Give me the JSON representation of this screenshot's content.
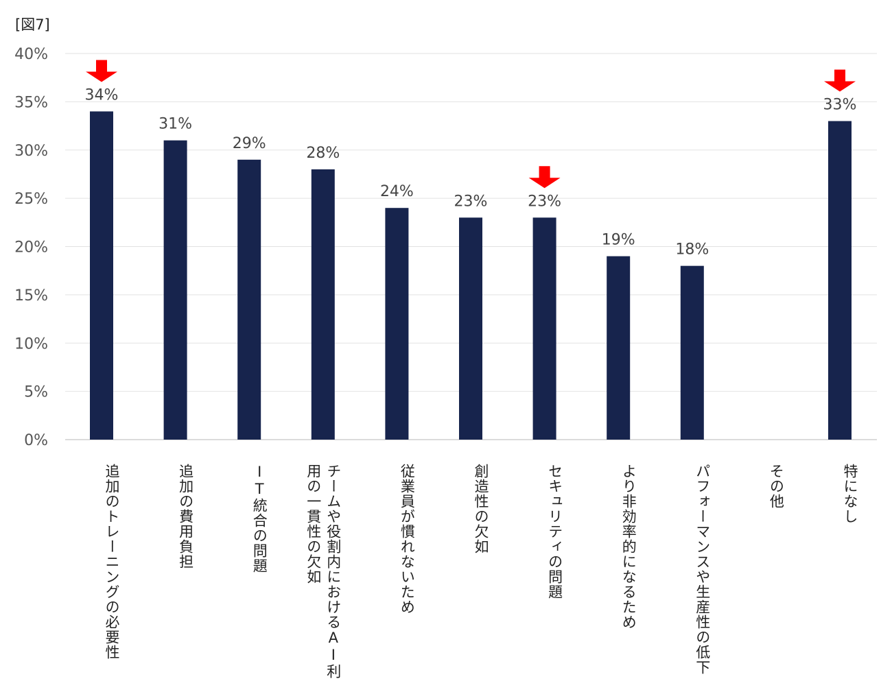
{
  "figure_label": "[図7]",
  "chart_data": {
    "type": "bar",
    "categories": [
      "追加のトレーニングの必要性",
      "追加の費用負担",
      "IT統合の問題",
      "チームや役割内におけるAI利用の一貫性の欠如",
      "従業員が慣れないため",
      "創造性の欠如",
      "セキュリティの問題",
      "より非効率的になるため",
      "パフォーマンスや生産性の低下",
      "その他",
      "特になし"
    ],
    "values": [
      34,
      31,
      29,
      28,
      24,
      23,
      23,
      19,
      18,
      0,
      33
    ],
    "data_labels": [
      "34%",
      "31%",
      "29%",
      "28%",
      "24%",
      "23%",
      "23%",
      "19%",
      "18%",
      "",
      "33%"
    ],
    "highlighted_indices": [
      0,
      6,
      10
    ],
    "ylim": [
      0,
      40
    ],
    "yticks": [
      "0%",
      "5%",
      "10%",
      "15%",
      "20%",
      "25%",
      "30%",
      "35%",
      "40%"
    ],
    "grid": true,
    "bar_color": "#17244d",
    "highlight_marker_color": "#ff0000",
    "title": "",
    "xlabel": "",
    "ylabel": ""
  }
}
